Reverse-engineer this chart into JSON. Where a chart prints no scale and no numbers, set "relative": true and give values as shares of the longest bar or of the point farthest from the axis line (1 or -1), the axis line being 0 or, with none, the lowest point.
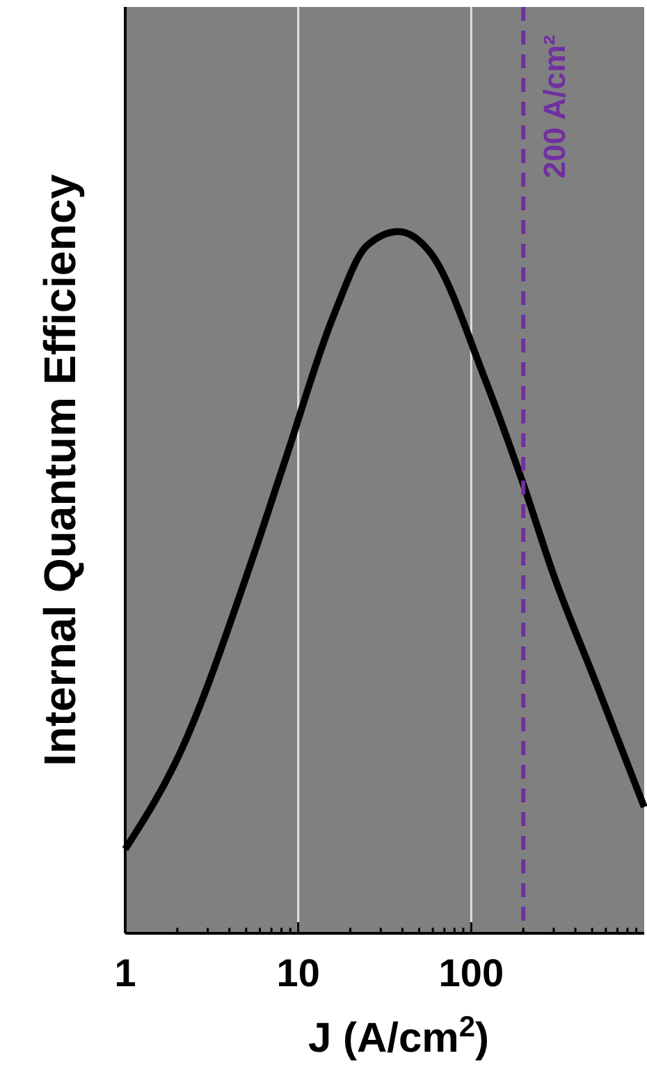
{
  "chart_data": {
    "type": "line",
    "xlabel": "J (A/cm$^{2}$)",
    "ylabel": "Internal Quantum Efficiency",
    "relative": true,
    "log": "x",
    "xlim": [
      1,
      1000
    ],
    "xticks": [
      1,
      {
        "value": 2,
        "label": null
      },
      {
        "value": 3,
        "label": null
      },
      {
        "value": 4,
        "label": null
      },
      {
        "value": 5,
        "label": null
      },
      {
        "value": 6,
        "label": null
      },
      {
        "value": 7,
        "label": null
      },
      {
        "value": 8,
        "label": null
      },
      {
        "value": 9,
        "label": null
      },
      10,
      {
        "value": 20,
        "label": null
      },
      {
        "value": 30,
        "label": null
      },
      {
        "value": 40,
        "label": null
      },
      {
        "value": 50,
        "label": null
      },
      {
        "value": 60,
        "label": null
      },
      {
        "value": 70,
        "label": null
      },
      {
        "value": 80,
        "label": null
      },
      {
        "value": 90,
        "label": null
      },
      100,
      {
        "value": 200,
        "label": null
      },
      {
        "value": 300,
        "label": null
      },
      {
        "value": 400,
        "label": null
      },
      {
        "value": 500,
        "label": null
      },
      {
        "value": 600,
        "label": null
      },
      {
        "value": 700,
        "label": null
      },
      {
        "value": 800,
        "label": null
      },
      {
        "value": 900,
        "label": null
      }
    ],
    "grid": "x",
    "x": [
      1,
      2.1,
      5.2,
      8.3,
      16,
      25,
      38,
      58,
      120,
      200,
      300,
      520,
      1000
    ],
    "series": [
      {
        "color": "#000000",
        "values": [
          0.12,
          0.26,
          0.52,
          0.67,
          0.88,
          0.98,
          1,
          0.97,
          0.79,
          0.64,
          0.51,
          0.36,
          0.18
        ]
      }
    ],
    "ref_lines": [
      {
        "axis": "x",
        "value": 200,
        "label": "200 A/cm²",
        "color": "#7030a0",
        "line_style": "dashed"
      }
    ]
  }
}
